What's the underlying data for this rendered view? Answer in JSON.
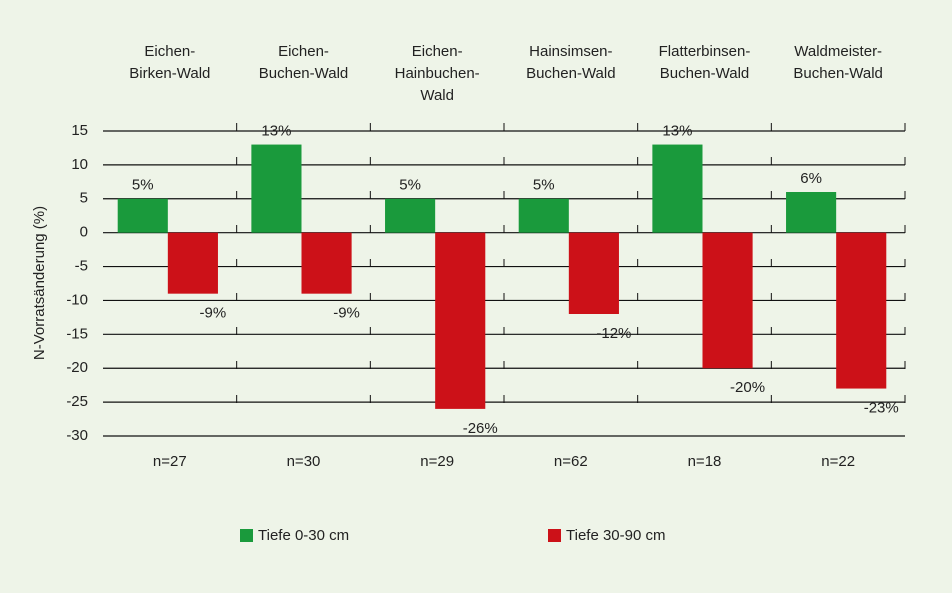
{
  "chart_data": {
    "type": "bar",
    "categories": [
      [
        "Eichen-",
        "Birken-Wald"
      ],
      [
        "Eichen-",
        "Buchen-Wald"
      ],
      [
        "Eichen-",
        "Hainbuchen-",
        "Wald"
      ],
      [
        "Hainsimsen-",
        "Buchen-Wald"
      ],
      [
        "Flatterbinsen-",
        "Buchen-Wald"
      ],
      [
        "Waldmeister-",
        "Buchen-Wald"
      ]
    ],
    "annotations": [
      "n=27",
      "n=30",
      "n=29",
      "n=62",
      "n=18",
      "n=22"
    ],
    "y_label": "N-Vorratsänderung (%)",
    "series": [
      {
        "name": "Tiefe 0-30 cm",
        "color": "#1a9a3c",
        "values": [
          5,
          13,
          5,
          5,
          13,
          6
        ],
        "value_labels": [
          "5%",
          "13%",
          "5%",
          "5%",
          "13%",
          "6%"
        ]
      },
      {
        "name": "Tiefe  30-90 cm",
        "color": "#cc1118",
        "values": [
          -9,
          -9,
          -26,
          -12,
          -20,
          -23
        ],
        "value_labels": [
          "-9%",
          "-9%",
          "-26%",
          "-12%",
          "-20%",
          "-23%"
        ]
      }
    ],
    "ylim": [
      -30,
      15
    ],
    "yticks": [
      -30,
      -25,
      -20,
      -15,
      -10,
      -5,
      0,
      5,
      10,
      15
    ],
    "grid": true
  }
}
